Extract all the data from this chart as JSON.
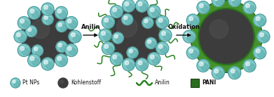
{
  "bg_color": "#ffffff",
  "carbon_color": "#3c3c3c",
  "pt_color_light": "#7ec8c8",
  "pt_color_mid": "#5aabab",
  "pt_color_dark": "#3a8888",
  "pani_color_dark": "#2a6e20",
  "pani_color_light": "#4ea030",
  "anilin_color": "#2a8020",
  "arrow_color": "#111111",
  "text_color": "#111111",
  "label_anilin": "Anilin",
  "label_oxidation": "Oxidation",
  "legend_pt": "Pt NPs",
  "legend_carbon": "Kohlenstoff",
  "legend_anilin": "Anilin",
  "legend_pani": "PANI",
  "figsize": [
    3.91,
    1.38
  ],
  "dpi": 100
}
